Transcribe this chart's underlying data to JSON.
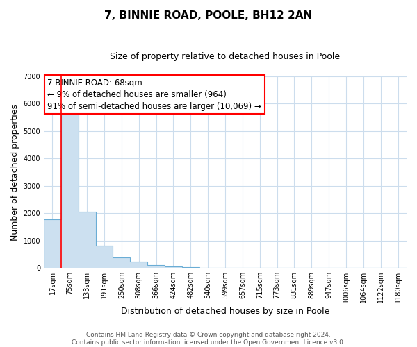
{
  "title": "7, BINNIE ROAD, POOLE, BH12 2AN",
  "subtitle": "Size of property relative to detached houses in Poole",
  "xlabel": "Distribution of detached houses by size in Poole",
  "ylabel": "Number of detached properties",
  "bar_values": [
    1780,
    5730,
    2050,
    820,
    370,
    220,
    105,
    55,
    20,
    10,
    5,
    0,
    0,
    0,
    0,
    0,
    0,
    0,
    0,
    0,
    0
  ],
  "bar_color": "#cce0f0",
  "bar_edge_color": "#6aadd5",
  "ylim": [
    0,
    7000
  ],
  "yticks": [
    0,
    1000,
    2000,
    3000,
    4000,
    5000,
    6000,
    7000
  ],
  "xtick_labels": [
    "17sqm",
    "75sqm",
    "133sqm",
    "191sqm",
    "250sqm",
    "308sqm",
    "366sqm",
    "424sqm",
    "482sqm",
    "540sqm",
    "599sqm",
    "657sqm",
    "715sqm",
    "773sqm",
    "831sqm",
    "889sqm",
    "947sqm",
    "1006sqm",
    "1064sqm",
    "1122sqm",
    "1180sqm"
  ],
  "annotation_box_text": "7 BINNIE ROAD: 68sqm\n← 9% of detached houses are smaller (964)\n91% of semi-detached houses are larger (10,069) →",
  "property_line_x": 1,
  "footer_line1": "Contains HM Land Registry data © Crown copyright and database right 2024.",
  "footer_line2": "Contains public sector information licensed under the Open Government Licence v3.0.",
  "background_color": "#ffffff",
  "grid_color": "#ccdded",
  "title_fontsize": 11,
  "subtitle_fontsize": 9,
  "axis_label_fontsize": 9,
  "tick_fontsize": 7,
  "annotation_fontsize": 8.5,
  "footer_fontsize": 6.5
}
